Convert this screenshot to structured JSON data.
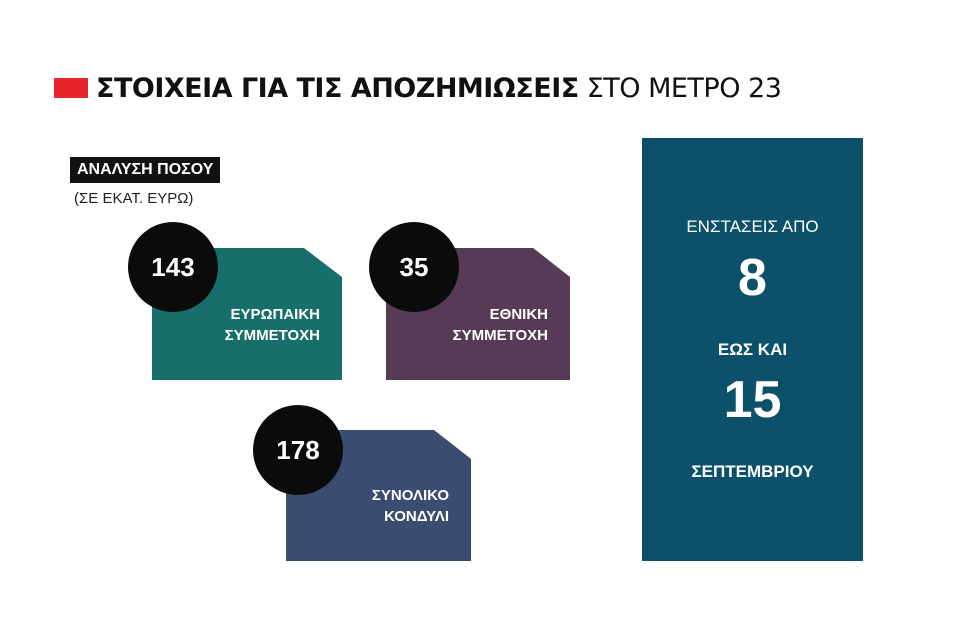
{
  "title": {
    "bold": "ΣΤΟΙΧΕΙΑ ΓΙΑ ΤΙΣ ΑΠΟΖΗΜΙΩΣΕΙΣ",
    "light": "ΣΤΟ ΜΕΤΡΟ 23",
    "marker_color": "#e8242b"
  },
  "breakdown": {
    "label": "ΑΝΑΛΥΣΗ ΠΟΣΟΥ",
    "unit": "(ΣΕ ΕΚΑΤ. ΕΥΡΩ)"
  },
  "cards": [
    {
      "value": "143",
      "line1": "ΕΥΡΩΠΑΙΚΗ",
      "line2": "ΣΥΜΜΕΤΟΧΗ",
      "color": "#186e6b"
    },
    {
      "value": "35",
      "line1": "ΕΘΝΙΚΗ",
      "line2": "ΣΥΜΜΕΤΟΧΗ",
      "color": "#573a55"
    },
    {
      "value": "178",
      "line1": "ΣΥΝΟΛΙΚΟ",
      "line2": "ΚΟΝΔΥΛΙ",
      "color": "#3a4c70"
    }
  ],
  "objections": {
    "from_label": "ΕΝΣΤΑΣΕΙΣ ΑΠΟ",
    "from_day": "8",
    "until_label": "ΕΩΣ ΚΑΙ",
    "until_day": "15",
    "month": "ΣΕΠΤΕΜΒΡΙΟΥ",
    "color": "#0c5169"
  }
}
